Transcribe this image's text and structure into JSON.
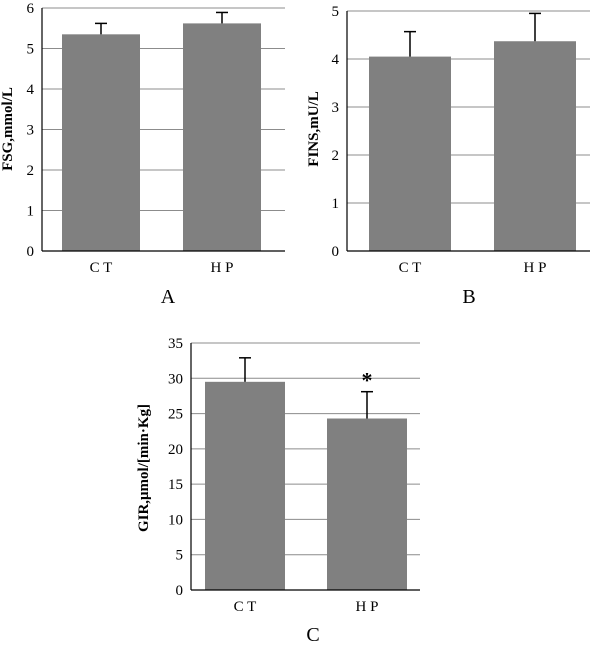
{
  "colors": {
    "bar": "#808080",
    "grid": "#8c8c8c",
    "axis": "#000000",
    "error_bar": "#000000"
  },
  "chart_data": [
    {
      "panel_label": "A",
      "type": "bar",
      "ylabel": "FSG,mmol/L",
      "categories": [
        "C T",
        "H P"
      ],
      "values": [
        5.35,
        5.62
      ],
      "errors": [
        0.27,
        0.27
      ],
      "ylim": [
        0,
        6
      ],
      "yticks": [
        0,
        1,
        2,
        3,
        4,
        5,
        6
      ],
      "grid": true,
      "annotations": []
    },
    {
      "panel_label": "B",
      "type": "bar",
      "ylabel": "FINS,mU/L",
      "categories": [
        "C T",
        "H P"
      ],
      "values": [
        4.05,
        4.37
      ],
      "errors": [
        0.52,
        0.58
      ],
      "ylim": [
        0,
        5
      ],
      "yticks": [
        0,
        1,
        2,
        3,
        4,
        5
      ],
      "grid": true,
      "annotations": []
    },
    {
      "panel_label": "C",
      "type": "bar",
      "ylabel": "GIR,μmol/[min·Kg]",
      "categories": [
        "C T",
        "H P"
      ],
      "values": [
        29.5,
        24.3
      ],
      "errors": [
        3.4,
        3.8
      ],
      "ylim": [
        0,
        35
      ],
      "yticks": [
        0,
        5,
        10,
        15,
        20,
        25,
        30,
        35
      ],
      "grid": true,
      "annotations": [
        {
          "category": "H P",
          "text": "*"
        }
      ]
    }
  ]
}
